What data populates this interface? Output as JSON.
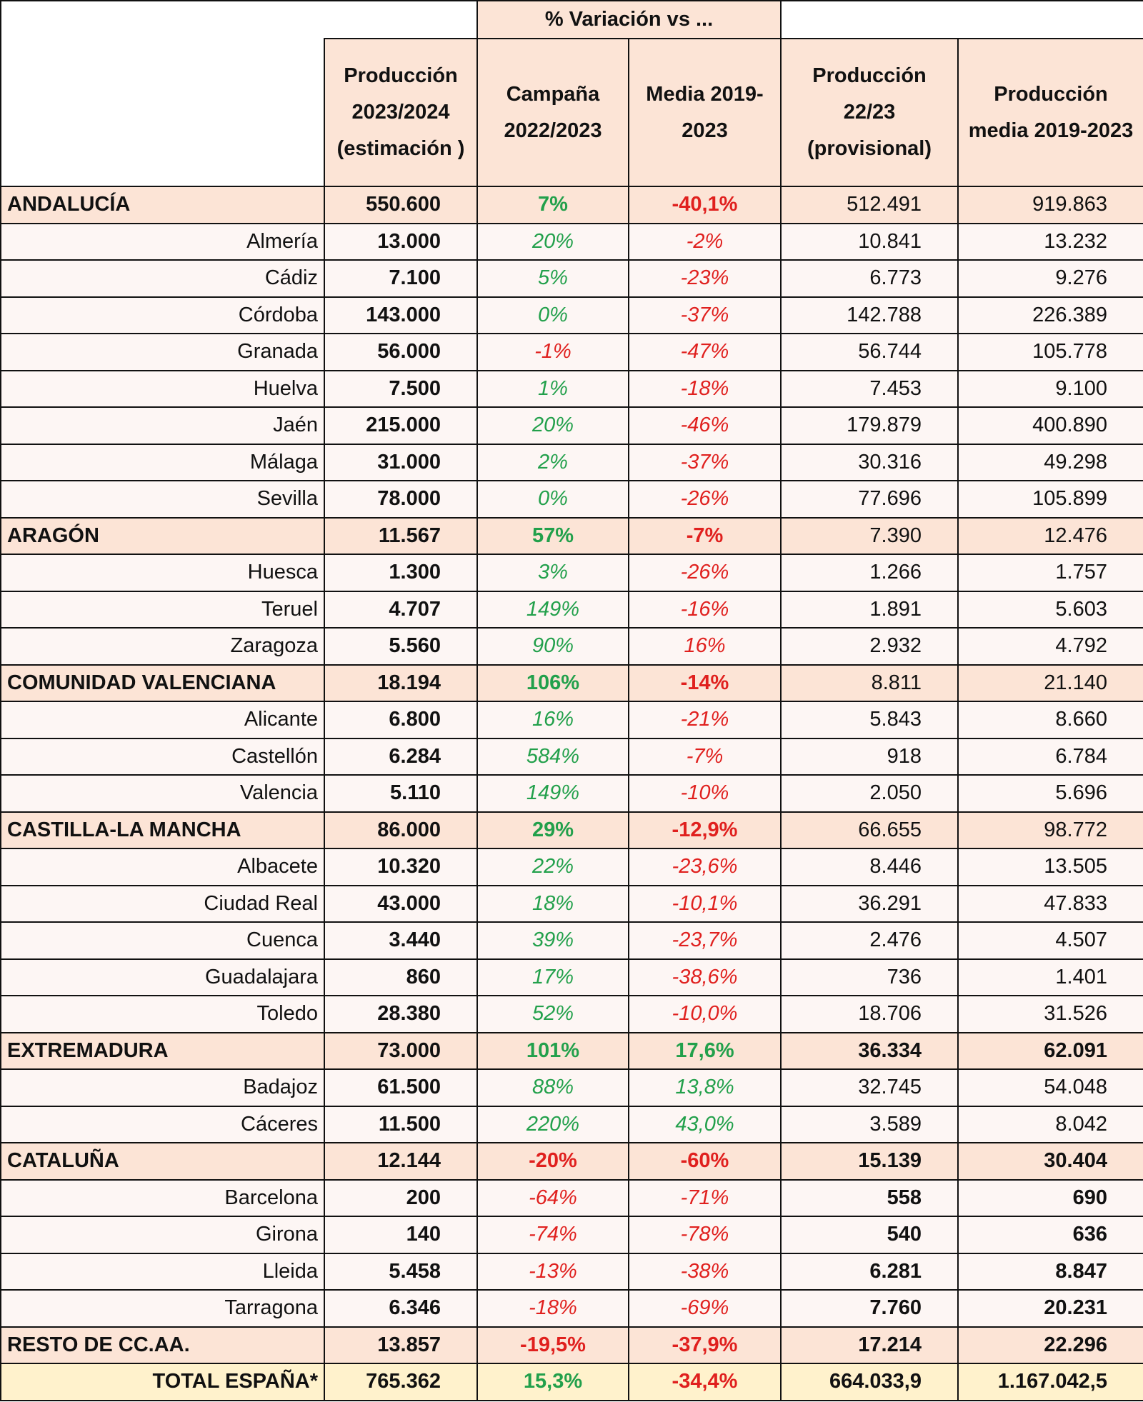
{
  "header": {
    "group_label": "% Variación vs ...",
    "col_prod": "Producción 2023/2024 (estimación )",
    "col_var_campana": "Campaña 2022/2023",
    "col_var_media": "Media 2019-2023",
    "col_prod_2223": "Producción 22/23 (provisional)",
    "col_prod_media": "Producción media 2019-2023"
  },
  "colors": {
    "positive": "#22a04b",
    "negative": "#e0201e",
    "region_bg": "#fce4d6",
    "province_bg": "#fdf6f4",
    "total_bg": "#fff2cc"
  },
  "rows": [
    {
      "type": "region",
      "name": "ANDALUCÍA",
      "prod": "550.600",
      "var_campana": "7%",
      "var_media": "-40,1%",
      "prod_2223": "512.491",
      "prod_media": "919.863",
      "bold_tail": false
    },
    {
      "type": "province",
      "name": "Almería",
      "prod": "13.000",
      "var_campana": "20%",
      "var_media": "-2%",
      "prod_2223": "10.841",
      "prod_media": "13.232",
      "bold_tail": false
    },
    {
      "type": "province",
      "name": "Cádiz",
      "prod": "7.100",
      "var_campana": "5%",
      "var_media": "-23%",
      "prod_2223": "6.773",
      "prod_media": "9.276",
      "bold_tail": false
    },
    {
      "type": "province",
      "name": "Córdoba",
      "prod": "143.000",
      "var_campana": "0%",
      "var_media": "-37%",
      "prod_2223": "142.788",
      "prod_media": "226.389",
      "bold_tail": false
    },
    {
      "type": "province",
      "name": "Granada",
      "prod": "56.000",
      "var_campana": "-1%",
      "var_media": "-47%",
      "prod_2223": "56.744",
      "prod_media": "105.778",
      "bold_tail": false
    },
    {
      "type": "province",
      "name": "Huelva",
      "prod": "7.500",
      "var_campana": "1%",
      "var_media": "-18%",
      "prod_2223": "7.453",
      "prod_media": "9.100",
      "bold_tail": false
    },
    {
      "type": "province",
      "name": "Jaén",
      "prod": "215.000",
      "var_campana": "20%",
      "var_media": "-46%",
      "prod_2223": "179.879",
      "prod_media": "400.890",
      "bold_tail": false
    },
    {
      "type": "province",
      "name": "Málaga",
      "prod": "31.000",
      "var_campana": "2%",
      "var_media": "-37%",
      "prod_2223": "30.316",
      "prod_media": "49.298",
      "bold_tail": false
    },
    {
      "type": "province",
      "name": "Sevilla",
      "prod": "78.000",
      "var_campana": "0%",
      "var_media": "-26%",
      "prod_2223": "77.696",
      "prod_media": "105.899",
      "bold_tail": false
    },
    {
      "type": "region",
      "name": "ARAGÓN",
      "prod": "11.567",
      "var_campana": "57%",
      "var_media": "-7%",
      "prod_2223": "7.390",
      "prod_media": "12.476",
      "bold_tail": false
    },
    {
      "type": "province",
      "name": "Huesca",
      "prod": "1.300",
      "var_campana": "3%",
      "var_media": "-26%",
      "prod_2223": "1.266",
      "prod_media": "1.757",
      "bold_tail": false
    },
    {
      "type": "province",
      "name": "Teruel",
      "prod": "4.707",
      "var_campana": "149%",
      "var_media": "-16%",
      "prod_2223": "1.891",
      "prod_media": "5.603",
      "bold_tail": false
    },
    {
      "type": "province",
      "name": "Zaragoza",
      "prod": "5.560",
      "var_campana": "90%",
      "var_media": "16%",
      "var_media_negative_color": true,
      "prod_2223": "2.932",
      "prod_media": "4.792",
      "bold_tail": false
    },
    {
      "type": "region",
      "name": "COMUNIDAD VALENCIANA",
      "prod": "18.194",
      "var_campana": "106%",
      "var_media": "-14%",
      "prod_2223": "8.811",
      "prod_media": "21.140",
      "bold_tail": false
    },
    {
      "type": "province",
      "name": "Alicante",
      "prod": "6.800",
      "var_campana": "16%",
      "var_media": "-21%",
      "prod_2223": "5.843",
      "prod_media": "8.660",
      "bold_tail": false
    },
    {
      "type": "province",
      "name": "Castellón",
      "prod": "6.284",
      "var_campana": "584%",
      "var_media": "-7%",
      "prod_2223": "918",
      "prod_media": "6.784",
      "bold_tail": false
    },
    {
      "type": "province",
      "name": "Valencia",
      "prod": "5.110",
      "var_campana": "149%",
      "var_media": "-10%",
      "prod_2223": "2.050",
      "prod_media": "5.696",
      "bold_tail": false
    },
    {
      "type": "region",
      "name": "CASTILLA-LA MANCHA",
      "prod": "86.000",
      "var_campana": "29%",
      "var_media": "-12,9%",
      "prod_2223": "66.655",
      "prod_media": "98.772",
      "bold_tail": false
    },
    {
      "type": "province",
      "name": "Albacete",
      "prod": "10.320",
      "var_campana": "22%",
      "var_media": "-23,6%",
      "prod_2223": "8.446",
      "prod_media": "13.505",
      "bold_tail": false
    },
    {
      "type": "province",
      "name": "Ciudad Real",
      "prod": "43.000",
      "var_campana": "18%",
      "var_media": "-10,1%",
      "prod_2223": "36.291",
      "prod_media": "47.833",
      "bold_tail": false
    },
    {
      "type": "province",
      "name": "Cuenca",
      "prod": "3.440",
      "var_campana": "39%",
      "var_media": "-23,7%",
      "prod_2223": "2.476",
      "prod_media": "4.507",
      "bold_tail": false
    },
    {
      "type": "province",
      "name": "Guadalajara",
      "prod": "860",
      "var_campana": "17%",
      "var_media": "-38,6%",
      "prod_2223": "736",
      "prod_media": "1.401",
      "bold_tail": false
    },
    {
      "type": "province",
      "name": "Toledo",
      "prod": "28.380",
      "var_campana": "52%",
      "var_media": "-10,0%",
      "prod_2223": "18.706",
      "prod_media": "31.526",
      "bold_tail": false
    },
    {
      "type": "region",
      "name": "EXTREMADURA",
      "prod": "73.000",
      "var_campana": "101%",
      "var_media": "17,6%",
      "prod_2223": "36.334",
      "prod_media": "62.091",
      "bold_tail": true
    },
    {
      "type": "province",
      "name": "Badajoz",
      "prod": "61.500",
      "var_campana": "88%",
      "var_media": "13,8%",
      "prod_2223": "32.745",
      "prod_media": "54.048",
      "bold_tail": false
    },
    {
      "type": "province",
      "name": "Cáceres",
      "prod": "11.500",
      "var_campana": "220%",
      "var_media": "43,0%",
      "prod_2223": "3.589",
      "prod_media": "8.042",
      "bold_tail": false
    },
    {
      "type": "region",
      "name": "CATALUÑA",
      "prod": "12.144",
      "var_campana": "-20%",
      "var_media": "-60%",
      "prod_2223": "15.139",
      "prod_media": "30.404",
      "bold_tail": true
    },
    {
      "type": "province",
      "name": "Barcelona",
      "prod": "200",
      "var_campana": "-64%",
      "var_media": "-71%",
      "prod_2223": "558",
      "prod_media": "690",
      "bold_tail": true
    },
    {
      "type": "province",
      "name": "Girona",
      "prod": "140",
      "var_campana": "-74%",
      "var_media": "-78%",
      "prod_2223": "540",
      "prod_media": "636",
      "bold_tail": true
    },
    {
      "type": "province",
      "name": "Lleida",
      "prod": "5.458",
      "var_campana": "-13%",
      "var_media": "-38%",
      "prod_2223": "6.281",
      "prod_media": "8.847",
      "bold_tail": true
    },
    {
      "type": "province",
      "name": "Tarragona",
      "prod": "6.346",
      "var_campana": "-18%",
      "var_media": "-69%",
      "prod_2223": "7.760",
      "prod_media": "20.231",
      "bold_tail": true
    },
    {
      "type": "region",
      "name": "RESTO DE CC.AA.",
      "prod": "13.857",
      "var_campana": "-19,5%",
      "var_media": "-37,9%",
      "prod_2223": "17.214",
      "prod_media": "22.296",
      "bold_tail": true
    },
    {
      "type": "total",
      "name": "TOTAL ESPAÑA*",
      "prod": "765.362",
      "var_campana": "15,3%",
      "var_media": "-34,4%",
      "prod_2223": "664.033,9",
      "prod_media": "1.167.042,5",
      "bold_tail": true
    }
  ]
}
